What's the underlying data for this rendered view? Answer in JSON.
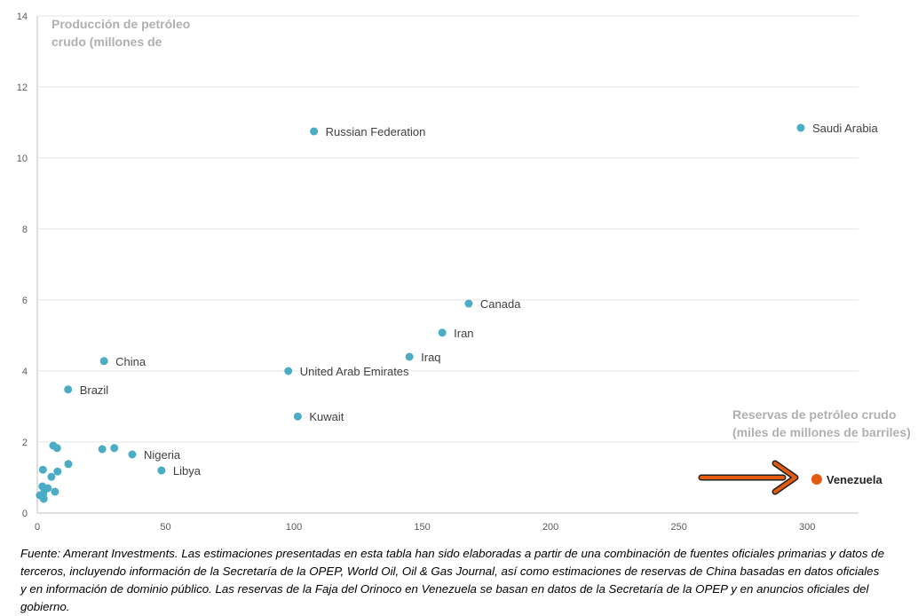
{
  "chart_data": {
    "type": "scatter",
    "y_title_lines": [
      "Producción de petróleo",
      "crudo (millones de"
    ],
    "x_title_lines": [
      "Reservas de petróleo crudo",
      "(miles de millones de barriles)"
    ],
    "xlim": [
      0,
      320
    ],
    "ylim": [
      0,
      14
    ],
    "x_ticks": [
      0,
      50,
      100,
      150,
      200,
      250,
      300
    ],
    "y_ticks": [
      0,
      2,
      4,
      6,
      8,
      10,
      12,
      14
    ],
    "grid": true,
    "colors": {
      "point": "#4bacc6",
      "highlight": "#e35b0f",
      "arrow": "#e35b0f",
      "grid": "#e6e6e6",
      "axis": "#bfbfbf"
    },
    "labeled_points": [
      {
        "label": "Saudi Arabia",
        "x": 297.5,
        "y": 10.85
      },
      {
        "label": "Russian Federation",
        "x": 107.8,
        "y": 10.75
      },
      {
        "label": "Canada",
        "x": 168.1,
        "y": 5.9
      },
      {
        "label": "Iran",
        "x": 157.8,
        "y": 5.08
      },
      {
        "label": "Iraq",
        "x": 145.0,
        "y": 4.4
      },
      {
        "label": "United Arab Emirates",
        "x": 97.8,
        "y": 4.0
      },
      {
        "label": "China",
        "x": 26.0,
        "y": 4.28
      },
      {
        "label": "Brazil",
        "x": 12.0,
        "y": 3.48
      },
      {
        "label": "Kuwait",
        "x": 101.5,
        "y": 2.72
      },
      {
        "label": "Nigeria",
        "x": 37.0,
        "y": 1.65
      },
      {
        "label": "Libya",
        "x": 48.4,
        "y": 1.2
      }
    ],
    "highlight_point": {
      "label": "Venezuela",
      "x": 303.7,
      "y": 0.95
    },
    "unlabeled_points": [
      {
        "x": 6.2,
        "y": 1.9
      },
      {
        "x": 7.7,
        "y": 1.83
      },
      {
        "x": 25.3,
        "y": 1.8
      },
      {
        "x": 30.0,
        "y": 1.83
      },
      {
        "x": 12.1,
        "y": 1.38
      },
      {
        "x": 2.2,
        "y": 1.22
      },
      {
        "x": 7.9,
        "y": 1.17
      },
      {
        "x": 5.5,
        "y": 1.02
      },
      {
        "x": 2.0,
        "y": 0.75
      },
      {
        "x": 4.1,
        "y": 0.7
      },
      {
        "x": 2.8,
        "y": 0.65
      },
      {
        "x": 6.9,
        "y": 0.6
      },
      {
        "x": 1.0,
        "y": 0.5
      },
      {
        "x": 2.3,
        "y": 0.53
      },
      {
        "x": 2.5,
        "y": 0.4
      }
    ]
  },
  "footer_text": "Fuente: Amerant Investments. Las estimaciones presentadas en esta tabla han sido elaboradas a partir de una combinación de fuentes oficiales primarias y datos de terceros, incluyendo información de la Secretaría de la OPEP, World Oil, Oil & Gas Journal, así como estimaciones de reservas de China basadas en datos oficiales y en información de dominio público. Las reservas de la Faja del Orinoco en Venezuela se basan en datos de la Secretaría de la OPEP y en anuncios oficiales del gobierno."
}
